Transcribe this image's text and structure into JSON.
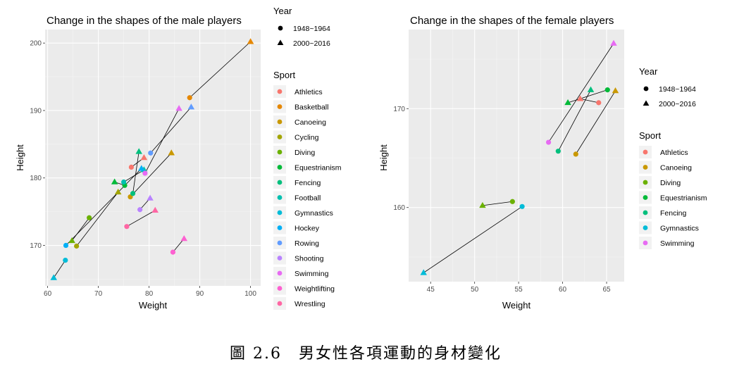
{
  "caption": "圖 2.6　男女性各項運動的身材變化",
  "colors": {
    "Athletics": "#F8766D",
    "Basketball": "#E58700",
    "Canoeing": "#C99800",
    "Cycling": "#A3A500",
    "Diving": "#6BB100",
    "Equestrianism": "#00BA38",
    "Fencing": "#00BF7D",
    "Football": "#00C0AF",
    "Gymnastics": "#00BCD8",
    "Hockey": "#00B0F6",
    "Rowing": "#619CFF",
    "Shooting": "#B983FF",
    "Swimming": "#E76BF3",
    "Weightlifting": "#FD61D1",
    "Wrestling": "#FF67A4"
  },
  "chart_data": [
    {
      "type": "scatter",
      "title": "Change in the shapes of the male players",
      "xlabel": "Weight",
      "ylabel": "Height",
      "xlim": [
        59.5,
        102
      ],
      "ylim": [
        164,
        202
      ],
      "xticks": [
        60,
        70,
        80,
        90,
        100
      ],
      "yticks": [
        170,
        180,
        190,
        200
      ],
      "grid": true,
      "legend_year_title": "Year",
      "legend_year": [
        "1948~1964",
        "2000~2016"
      ],
      "legend_sport_title": "Sport",
      "legend_sport": [
        "Athletics",
        "Basketball",
        "Canoeing",
        "Cycling",
        "Diving",
        "Equestrianism",
        "Fencing",
        "Football",
        "Gymnastics",
        "Hockey",
        "Rowing",
        "Shooting",
        "Swimming",
        "Weightlifting",
        "Wrestling"
      ],
      "series": [
        {
          "name": "Athletics",
          "early": [
            76.5,
            181.6
          ],
          "late": [
            79.0,
            183.0
          ]
        },
        {
          "name": "Basketball",
          "early": [
            88.0,
            191.9
          ],
          "late": [
            100.0,
            200.2
          ]
        },
        {
          "name": "Canoeing",
          "early": [
            76.3,
            177.2
          ],
          "late": [
            84.4,
            183.7
          ]
        },
        {
          "name": "Cycling",
          "early": [
            65.7,
            169.9
          ],
          "late": [
            73.9,
            177.9
          ]
        },
        {
          "name": "Diving",
          "early": [
            68.2,
            174.1
          ],
          "late": [
            64.8,
            170.7
          ]
        },
        {
          "name": "Equestrianism",
          "early": [
            75.2,
            178.9
          ],
          "late": [
            73.2,
            179.4
          ]
        },
        {
          "name": "Fencing",
          "early": [
            76.8,
            177.7
          ],
          "late": [
            78.0,
            183.9
          ]
        },
        {
          "name": "Football",
          "early": [
            75.0,
            179.4
          ],
          "late": [
            79.0,
            181.2
          ]
        },
        {
          "name": "Gymnastics",
          "early": [
            63.5,
            167.8
          ],
          "late": [
            61.2,
            165.2
          ]
        },
        {
          "name": "Hockey",
          "early": [
            63.6,
            170.0
          ],
          "late": [
            78.5,
            181.4
          ]
        },
        {
          "name": "Rowing",
          "early": [
            80.3,
            183.7
          ],
          "late": [
            88.3,
            190.5
          ]
        },
        {
          "name": "Shooting",
          "early": [
            78.2,
            175.3
          ],
          "late": [
            80.2,
            177.0
          ]
        },
        {
          "name": "Swimming",
          "early": [
            79.2,
            180.7
          ],
          "late": [
            85.9,
            190.3
          ]
        },
        {
          "name": "Weightlifting",
          "early": [
            84.7,
            169.0
          ],
          "late": [
            86.9,
            171.0
          ]
        },
        {
          "name": "Wrestling",
          "early": [
            75.6,
            172.8
          ],
          "late": [
            81.2,
            175.2
          ]
        }
      ]
    },
    {
      "type": "scatter",
      "title": "Change in the shapes of the female players",
      "xlabel": "Weight",
      "ylabel": "Height",
      "xlim": [
        42.5,
        67
      ],
      "ylim": [
        152.5,
        178
      ],
      "xticks": [
        45,
        50,
        55,
        60,
        65
      ],
      "yticks": [
        160,
        170
      ],
      "grid": true,
      "legend_year_title": "Year",
      "legend_year": [
        "1948~1964",
        "2000~2016"
      ],
      "legend_sport_title": "Sport",
      "legend_sport": [
        "Athletics",
        "Canoeing",
        "Diving",
        "Equestrianism",
        "Fencing",
        "Gymnastics",
        "Swimming"
      ],
      "series": [
        {
          "name": "Athletics",
          "early": [
            64.1,
            170.6
          ],
          "late": [
            62.0,
            171.0
          ]
        },
        {
          "name": "Canoeing",
          "early": [
            61.5,
            165.4
          ],
          "late": [
            66.0,
            171.8
          ]
        },
        {
          "name": "Diving",
          "early": [
            54.3,
            160.6
          ],
          "late": [
            50.9,
            160.2
          ]
        },
        {
          "name": "Equestrianism",
          "early": [
            65.1,
            171.9
          ],
          "late": [
            60.6,
            170.6
          ]
        },
        {
          "name": "Fencing",
          "early": [
            59.5,
            165.7
          ],
          "late": [
            63.2,
            171.9
          ]
        },
        {
          "name": "Gymnastics",
          "early": [
            55.4,
            160.1
          ],
          "late": [
            44.2,
            153.4
          ]
        },
        {
          "name": "Swimming",
          "early": [
            58.4,
            166.6
          ],
          "late": [
            65.8,
            176.6
          ]
        }
      ]
    }
  ]
}
